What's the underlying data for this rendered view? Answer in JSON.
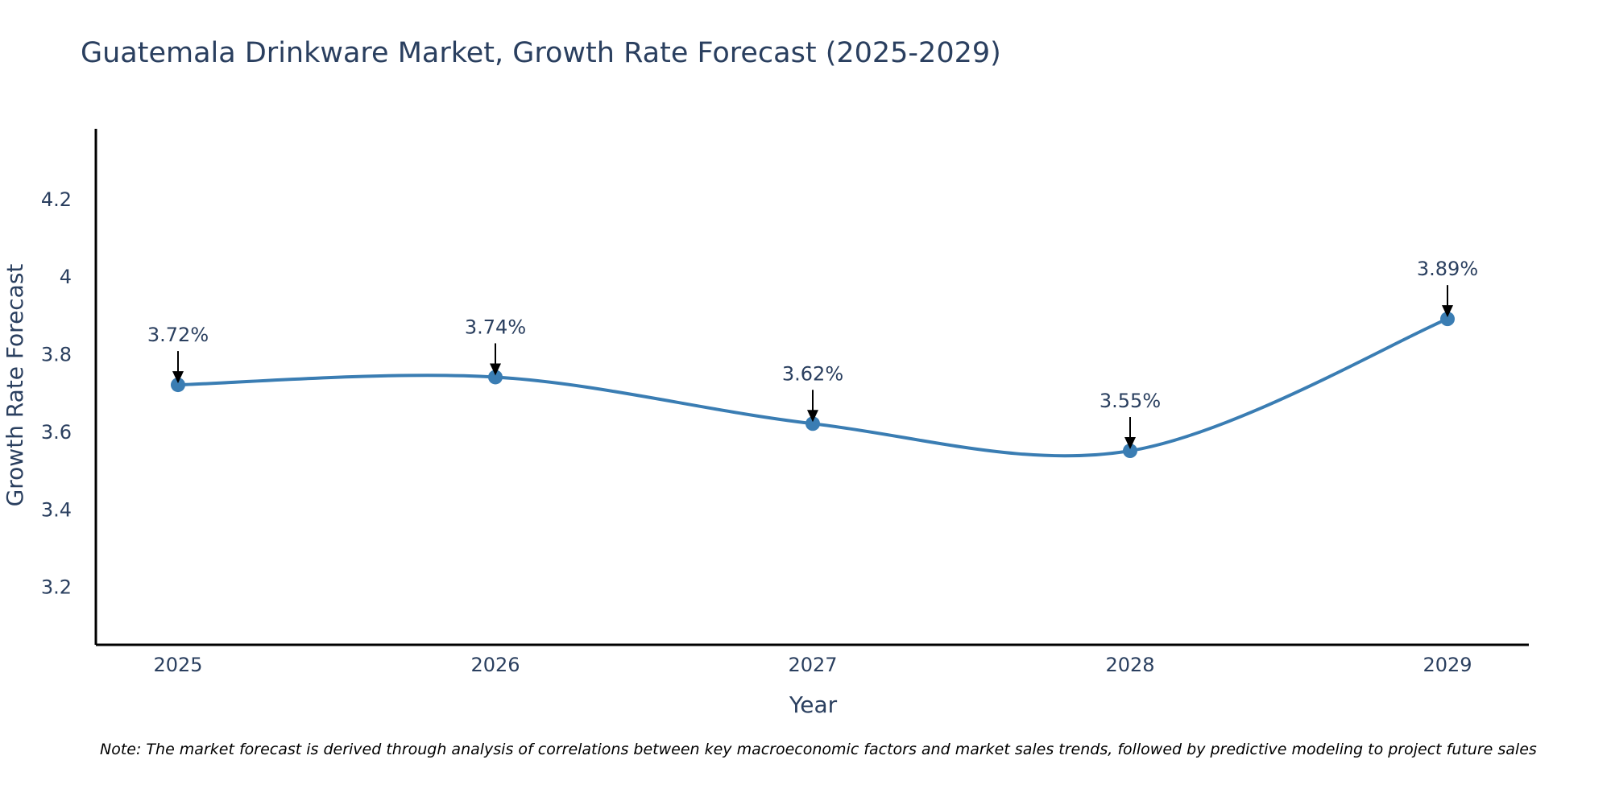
{
  "title": "Guatemala Drinkware Market, Growth Rate Forecast (2025-2029)",
  "note": "Note: The market forecast is derived through analysis of correlations between key macroeconomic factors and market sales trends, followed by predictive modeling to project future sales",
  "colors": {
    "line": "#3a7db3",
    "marker": "#3a7db3",
    "axis": "#000000",
    "text": "#2a3f5f",
    "arrow": "#000000"
  },
  "chart_data": {
    "type": "line",
    "title": "Guatemala Drinkware Market, Growth Rate Forecast (2025-2029)",
    "xlabel": "Year",
    "ylabel": "Growth Rate Forecast",
    "categories": [
      "2025",
      "2026",
      "2027",
      "2028",
      "2029"
    ],
    "values": [
      3.72,
      3.74,
      3.62,
      3.55,
      3.89
    ],
    "labels": [
      "3.72%",
      "3.74%",
      "3.62%",
      "3.55%",
      "3.89%"
    ],
    "ylim": [
      3.05,
      4.38
    ],
    "yticks": [
      3.2,
      3.4,
      3.6,
      3.8,
      4,
      4.2
    ],
    "ytick_labels": [
      "3.2",
      "3.4",
      "3.6",
      "3.8",
      "4",
      "4.2"
    ],
    "grid": false,
    "line_shape": "spline"
  }
}
